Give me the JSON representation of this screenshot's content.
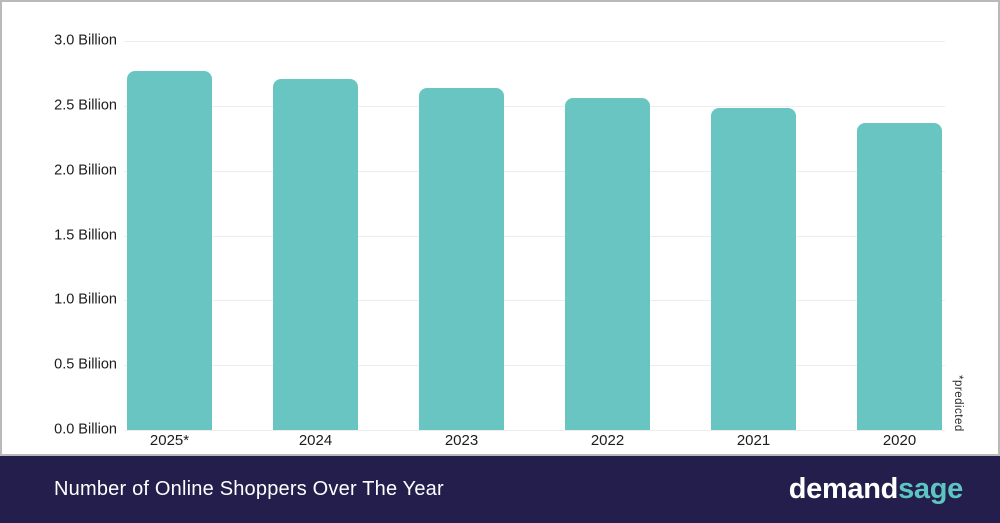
{
  "chart_data": {
    "type": "bar",
    "title": "Number of Online Shoppers Over The Year",
    "categories": [
      "2025*",
      "2024",
      "2023",
      "2022",
      "2021",
      "2020"
    ],
    "values": [
      2.77,
      2.71,
      2.64,
      2.56,
      2.48,
      2.37
    ],
    "unit": "Billion",
    "xlabel": "",
    "ylabel": "",
    "ylim": [
      0,
      3
    ],
    "ytick_step": 0.5,
    "ytick_labels_top_to_bottom": [
      "3.0 Billion",
      "2.5 Billion",
      "2.0 Billion",
      "1.5 Billion",
      "1.0 Billion",
      "0.5 Billion",
      "0.0 Billion"
    ],
    "grid": true,
    "legend_position": "none",
    "annotation": "*predicted",
    "bar_color": "#68c5c2"
  },
  "footer": {
    "title": "Number of Online Shoppers Over The Year",
    "logo": {
      "part1": "demand",
      "part2": "sage"
    }
  },
  "colors": {
    "bar_teal": "#68c5c2",
    "footer_navy": "#241e4c",
    "logo_sage_teal": "#5cc5c2",
    "gridline": "#ededed",
    "card_border": "#b9b9b9",
    "axis_text": "#1c1c1c",
    "title_text": "#ffffff"
  }
}
